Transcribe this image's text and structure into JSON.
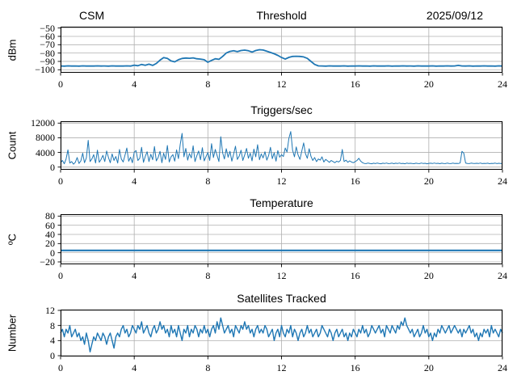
{
  "figure": {
    "background": "#ffffff",
    "line_color": "#1f77b4",
    "grid_color": "#b0b0b0",
    "spine_color": "#000000",
    "date_label": "2025/09/12",
    "station_label": "CSM"
  },
  "chart_data": [
    {
      "type": "line",
      "title": "Threshold",
      "title_left": "CSM",
      "title_right": "2025/09/12",
      "ylabel": "dBm",
      "xlim": [
        0,
        24
      ],
      "ylim": [
        -103.6,
        -48.4
      ],
      "grid": true,
      "xticks": {
        "vals": [
          0,
          4,
          8,
          12,
          16,
          20,
          24
        ],
        "labels": [
          "0",
          "4",
          "8",
          "12",
          "16",
          "20",
          "24"
        ]
      },
      "yticks": {
        "vals": [
          -50,
          -60,
          -70,
          -80,
          -90,
          -100
        ],
        "labels": [
          "−50",
          "−60",
          "−70",
          "−80",
          "−90",
          "−100"
        ]
      },
      "series": [
        {
          "name": "threshold_dbm",
          "x0": 0,
          "dx": 0.2,
          "values": [
            -95.5,
            -95.7,
            -95.4,
            -95.6,
            -95.5,
            -95.7,
            -95.4,
            -95.6,
            -95.5,
            -95.6,
            -95.4,
            -95.6,
            -95.5,
            -95.7,
            -95.4,
            -95.6,
            -95.5,
            -95.6,
            -95.4,
            -95.6,
            -94.5,
            -95.2,
            -93.6,
            -94.6,
            -93.3,
            -94.8,
            -92.5,
            -88.5,
            -85.5,
            -86.5,
            -89.5,
            -90.5,
            -88.0,
            -86.5,
            -86.0,
            -86.3,
            -85.8,
            -86.8,
            -87.2,
            -88.0,
            -91.0,
            -88.8,
            -86.8,
            -87.5,
            -84.0,
            -80.0,
            -78.0,
            -77.3,
            -78.3,
            -77.0,
            -76.5,
            -77.3,
            -78.8,
            -77.0,
            -76.0,
            -76.4,
            -77.8,
            -79.3,
            -80.8,
            -82.8,
            -85.3,
            -87.2,
            -85.2,
            -84.0,
            -83.8,
            -84.0,
            -84.6,
            -86.4,
            -90.0,
            -93.6,
            -95.4,
            -95.5,
            -95.7,
            -95.4,
            -95.6,
            -95.5,
            -95.6,
            -95.4,
            -95.7,
            -95.5,
            -95.6,
            -95.4,
            -95.6,
            -95.5,
            -95.7,
            -95.4,
            -95.6,
            -95.5,
            -95.6,
            -95.4,
            -95.7,
            -95.5,
            -95.6,
            -95.4,
            -95.6,
            -95.5,
            -95.7,
            -95.4,
            -95.6,
            -95.5,
            -95.6,
            -95.4,
            -95.7,
            -95.5,
            -95.6,
            -95.4,
            -95.6,
            -95.5,
            -94.8,
            -95.5,
            -95.6,
            -95.4,
            -95.7,
            -95.5,
            -95.6,
            -95.4,
            -95.6,
            -95.5,
            -95.7,
            -95.4,
            -95.6
          ]
        }
      ]
    },
    {
      "type": "line",
      "title": "Triggers/sec",
      "ylabel": "Count",
      "xlim": [
        0,
        24
      ],
      "ylim": [
        -728,
        12507
      ],
      "grid": true,
      "xticks": {
        "vals": [
          0,
          4,
          8,
          12,
          16,
          20,
          24
        ],
        "labels": [
          "0",
          "4",
          "8",
          "12",
          "16",
          "20",
          "24"
        ]
      },
      "yticks": {
        "vals": [
          0,
          4000,
          8000,
          12000
        ],
        "labels": [
          "0",
          "4000",
          "8000",
          "12000"
        ]
      },
      "series": [
        {
          "name": "triggers_per_sec",
          "x0": 0,
          "dx": 0.1,
          "values": [
            1200,
            1800,
            900,
            2200,
            4700,
            1100,
            1500,
            800,
            1300,
            2600,
            1000,
            1700,
            3800,
            1200,
            2500,
            7300,
            1500,
            2200,
            3400,
            1100,
            4600,
            1300,
            2100,
            3200,
            1500,
            4400,
            2600,
            1200,
            3600,
            1800,
            2900,
            1100,
            4800,
            2200,
            1400,
            3300,
            5200,
            1600,
            2700,
            1200,
            4100,
            4500,
            1800,
            2400,
            5400,
            1300,
            2900,
            4200,
            1500,
            3500,
            2000,
            5600,
            1700,
            2600,
            4300,
            1200,
            3800,
            2100,
            5900,
            1400,
            2800,
            3400,
            1600,
            4700,
            2300,
            6200,
            9200,
            2800,
            5100,
            1900,
            3700,
            2500,
            5800,
            1500,
            3100,
            4400,
            2000,
            5300,
            1700,
            2900,
            4000,
            1800,
            6400,
            2600,
            4800,
            3200,
            1500,
            8300,
            3900,
            2200,
            5000,
            2700,
            4300,
            1600,
            3500,
            5700,
            2100,
            3000,
            4600,
            1800,
            3300,
            5100,
            2400,
            3800,
            1700,
            4900,
            2800,
            6100,
            2000,
            3600,
            2500,
            4200,
            1900,
            3100,
            5400,
            2300,
            3900,
            1600,
            4500,
            2700,
            3400,
            2900,
            5200,
            4100,
            7800,
            9700,
            4600,
            2800,
            5500,
            3300,
            2100,
            4400,
            6600,
            3700,
            2400,
            5000,
            2900,
            1800,
            2600,
            1500,
            2200,
            1900,
            2800,
            1400,
            2100,
            1700,
            1300,
            1800,
            1500,
            1200,
            1600,
            1400,
            1800,
            4800,
            1500,
            1900,
            1300,
            1700,
            1400,
            1200,
            1500,
            1800,
            2400,
            1600,
            1200,
            1000,
            950,
            1100,
            1000,
            900,
            1050,
            950,
            1100,
            1000,
            900,
            1050,
            980,
            1100,
            950,
            1000,
            1080,
            920,
            1050,
            980,
            1100,
            950,
            1020,
            900,
            1080,
            960,
            1040,
            980,
            920,
            1060,
            1000,
            950,
            1100,
            970,
            1030,
            900,
            1010,
            1050,
            960,
            1100,
            980,
            1040,
            920,
            1060,
            990,
            950,
            1080,
            1000,
            940,
            1070,
            990,
            1020,
            960,
            1100,
            4300,
            3800,
            1100,
            1000,
            950,
            1080,
            1010,
            960,
            1040,
            980,
            1100,
            940,
            1020,
            990,
            1060,
            930,
            1010,
            970,
            1090,
            950,
            1030,
            1000,
            980
          ]
        }
      ]
    },
    {
      "type": "line",
      "title": "Temperature",
      "ylabel": "ºC",
      "xlim": [
        0,
        24
      ],
      "ylim": [
        -25.3,
        84.1
      ],
      "grid": true,
      "xticks": {
        "vals": [
          0,
          4,
          8,
          12,
          16,
          20,
          24
        ],
        "labels": [
          "0",
          "4",
          "8",
          "12",
          "16",
          "20",
          "24"
        ]
      },
      "yticks": {
        "vals": [
          -20,
          0,
          20,
          40,
          60,
          80
        ],
        "labels": [
          "−20",
          "0",
          "20",
          "40",
          "60",
          "80"
        ]
      },
      "series": [
        {
          "name": "temperature_c",
          "x0": 0,
          "dx": 1,
          "values": [
            5,
            5,
            5,
            5,
            5,
            5,
            5,
            5,
            5,
            5,
            5,
            5,
            5,
            5,
            5,
            5,
            5,
            5,
            5,
            5,
            5,
            5,
            5,
            5,
            5
          ]
        }
      ]
    },
    {
      "type": "line",
      "title": "Satellites Tracked",
      "ylabel": "Number",
      "xlim": [
        0,
        24
      ],
      "ylim": [
        -0.21,
        12.21
      ],
      "grid": true,
      "xticks": {
        "vals": [
          0,
          4,
          8,
          12,
          16,
          20,
          24
        ],
        "labels": [
          "0",
          "4",
          "8",
          "12",
          "16",
          "20",
          "24"
        ]
      },
      "yticks": {
        "vals": [
          0,
          4,
          8,
          12
        ],
        "labels": [
          "0",
          "4",
          "8",
          "12"
        ]
      },
      "series": [
        {
          "name": "satellites_tracked",
          "x0": 0,
          "dx": 0.1,
          "values": [
            6,
            7,
            5,
            7,
            6,
            8,
            5,
            6,
            7,
            5,
            6,
            4,
            5,
            3,
            6,
            4,
            1,
            3,
            5,
            4,
            6,
            5,
            4,
            6,
            5,
            3,
            5,
            6,
            4,
            2,
            5,
            6,
            5,
            7,
            8,
            6,
            7,
            5,
            6,
            8,
            7,
            6,
            8,
            7,
            9,
            6,
            7,
            8,
            6,
            5,
            7,
            8,
            6,
            7,
            9,
            7,
            8,
            6,
            7,
            5,
            8,
            6,
            7,
            5,
            8,
            6,
            4,
            7,
            6,
            8,
            5,
            7,
            6,
            8,
            7,
            5,
            7,
            6,
            8,
            6,
            7,
            5,
            7,
            8,
            6,
            9,
            7,
            10,
            8,
            6,
            7,
            8,
            6,
            7,
            5,
            8,
            7,
            6,
            8,
            7,
            9,
            7,
            8,
            6,
            7,
            5,
            7,
            8,
            6,
            7,
            6,
            8,
            7,
            5,
            6,
            7,
            4,
            6,
            7,
            5,
            8,
            6,
            5,
            7,
            6,
            8,
            5,
            7,
            6,
            4,
            6,
            7,
            5,
            6,
            8,
            6,
            7,
            5,
            6,
            7,
            5,
            6,
            8,
            7,
            6,
            5,
            7,
            6,
            4,
            6,
            7,
            5,
            6,
            7,
            5,
            6,
            4,
            6,
            5,
            7,
            6,
            5,
            7,
            6,
            8,
            6,
            7,
            5,
            6,
            8,
            7,
            6,
            7,
            8,
            6,
            7,
            5,
            8,
            7,
            6,
            8,
            7,
            6,
            8,
            7,
            9,
            8,
            10,
            8,
            7,
            6,
            7,
            5,
            6,
            7,
            5,
            6,
            8,
            6,
            7,
            5,
            6,
            4,
            6,
            5,
            7,
            6,
            8,
            7,
            6,
            7,
            8,
            6,
            7,
            8,
            7,
            6,
            7,
            5,
            7,
            6,
            7,
            8,
            6,
            7,
            5,
            6,
            4,
            6,
            5,
            7,
            6,
            7,
            5,
            8,
            6,
            7,
            6,
            5,
            7,
            6
          ]
        }
      ]
    }
  ]
}
